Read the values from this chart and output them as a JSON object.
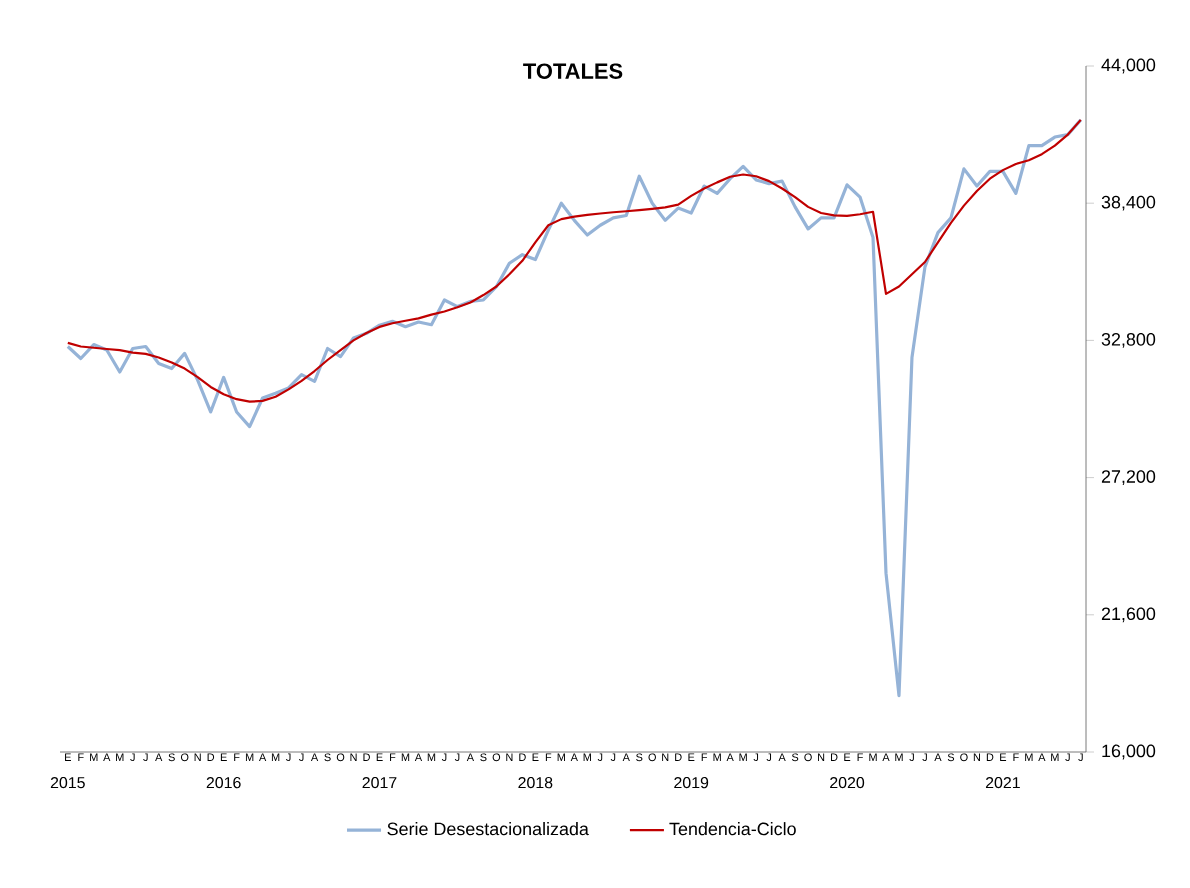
{
  "chart_data": {
    "type": "line",
    "title": "TOTALES",
    "categories": [
      "E",
      "F",
      "M",
      "A",
      "M",
      "J",
      "J",
      "A",
      "S",
      "O",
      "N",
      "D",
      "E",
      "F",
      "M",
      "A",
      "M",
      "J",
      "J",
      "A",
      "S",
      "O",
      "N",
      "D",
      "E",
      "F",
      "M",
      "A",
      "M",
      "J",
      "J",
      "A",
      "S",
      "O",
      "N",
      "D",
      "E",
      "F",
      "M",
      "A",
      "M",
      "J",
      "J",
      "A",
      "S",
      "O",
      "N",
      "D",
      "E",
      "F",
      "M",
      "A",
      "M",
      "J",
      "J",
      "A",
      "S",
      "O",
      "N",
      "D",
      "E",
      "F",
      "M",
      "A",
      "M",
      "J",
      "J",
      "A",
      "S",
      "O",
      "N",
      "D",
      "E",
      "F",
      "M",
      "A",
      "M",
      "J",
      "J"
    ],
    "series": [
      {
        "name": "Serie Desestacionalizada",
        "color": "#95b3d7",
        "values": [
          32550,
          32060,
          32630,
          32410,
          31510,
          32470,
          32550,
          31860,
          31650,
          32270,
          31180,
          29880,
          31290,
          29880,
          29280,
          30450,
          30640,
          30860,
          31400,
          31130,
          32470,
          32140,
          32900,
          33090,
          33420,
          33580,
          33360,
          33550,
          33440,
          34450,
          34180,
          34390,
          34450,
          34990,
          35950,
          36300,
          36100,
          37300,
          38400,
          37700,
          37100,
          37500,
          37800,
          37900,
          39500,
          38400,
          37700,
          38200,
          38000,
          39100,
          38800,
          39400,
          39900,
          39350,
          39200,
          39300,
          38250,
          37350,
          37800,
          37800,
          39150,
          38650,
          37000,
          23300,
          18300,
          32100,
          35800,
          37200,
          37800,
          39800,
          39100,
          39700,
          39700,
          38800,
          40750,
          40750,
          41100,
          41200,
          41800
        ]
      },
      {
        "name": "Tendencia-Ciclo",
        "color": "#c00000",
        "values": [
          32700,
          32550,
          32500,
          32450,
          32400,
          32300,
          32250,
          32100,
          31900,
          31650,
          31300,
          30900,
          30600,
          30400,
          30300,
          30330,
          30500,
          30800,
          31150,
          31550,
          32000,
          32400,
          32800,
          33100,
          33350,
          33500,
          33600,
          33700,
          33850,
          33980,
          34150,
          34350,
          34650,
          35000,
          35500,
          36050,
          36800,
          37500,
          37750,
          37850,
          37920,
          37980,
          38030,
          38070,
          38120,
          38170,
          38230,
          38340,
          38700,
          39000,
          39250,
          39480,
          39570,
          39500,
          39300,
          39000,
          38650,
          38250,
          38000,
          37900,
          37880,
          37950,
          38050,
          34700,
          35000,
          35500,
          36000,
          36800,
          37600,
          38300,
          38900,
          39400,
          39750,
          40000,
          40150,
          40400,
          40750,
          41200,
          41800
        ]
      }
    ],
    "ylim": [
      16000,
      44000
    ],
    "yticks": [
      {
        "value": 16000,
        "label": "16,000"
      },
      {
        "value": 21600,
        "label": "21,600"
      },
      {
        "value": 27200,
        "label": "27,200"
      },
      {
        "value": 32800,
        "label": "32,800"
      },
      {
        "value": 38400,
        "label": "38,400"
      },
      {
        "value": 44000,
        "label": "44,000"
      }
    ],
    "annotations": [
      "2015",
      "2016",
      "2017",
      "2018",
      "2019",
      "2020",
      "2021"
    ],
    "legend": "bottom",
    "grid": false,
    "marker": "none",
    "line_style": "solid"
  }
}
